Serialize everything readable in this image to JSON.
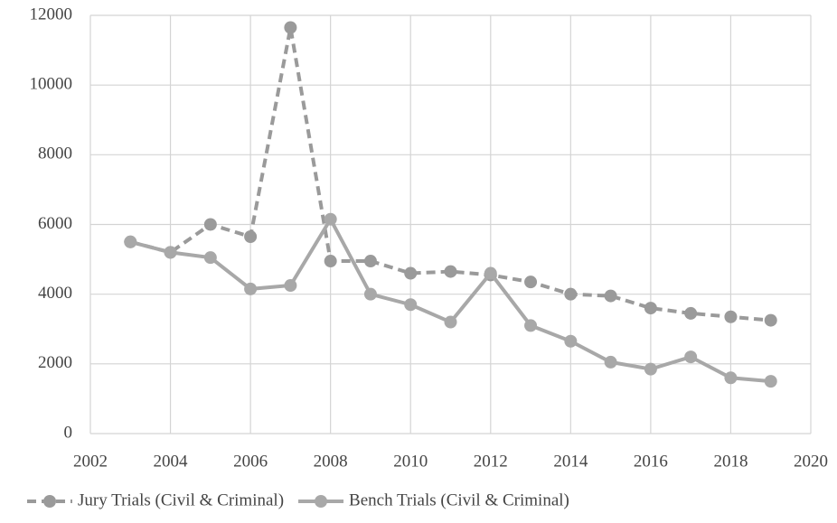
{
  "chart_data": {
    "type": "line",
    "x": [
      2003,
      2004,
      2005,
      2006,
      2007,
      2008,
      2009,
      2010,
      2011,
      2012,
      2013,
      2014,
      2015,
      2016,
      2017,
      2018,
      2019
    ],
    "series": [
      {
        "name": "Jury Trials (Civil & Criminal)",
        "color": "#9a9a9a",
        "dashed": true,
        "values": [
          5500,
          5200,
          6000,
          5650,
          11650,
          4950,
          4950,
          4600,
          4650,
          4550,
          4350,
          4000,
          3950,
          3600,
          3450,
          3350,
          3250
        ]
      },
      {
        "name": "Bench Trials (Civil & Criminal)",
        "color": "#a8a8a8",
        "dashed": false,
        "values": [
          5500,
          5200,
          5050,
          4150,
          4250,
          6150,
          4000,
          3700,
          3200,
          4600,
          3100,
          2650,
          2050,
          1850,
          2200,
          1600,
          1500
        ]
      }
    ],
    "xlim": [
      2002,
      2020
    ],
    "xticks": [
      2002,
      2004,
      2006,
      2008,
      2010,
      2012,
      2014,
      2016,
      2018,
      2020
    ],
    "ylim": [
      0,
      12000
    ],
    "yticks": [
      0,
      2000,
      4000,
      6000,
      8000,
      10000,
      12000
    ],
    "grid": true,
    "legend": "bottom"
  }
}
